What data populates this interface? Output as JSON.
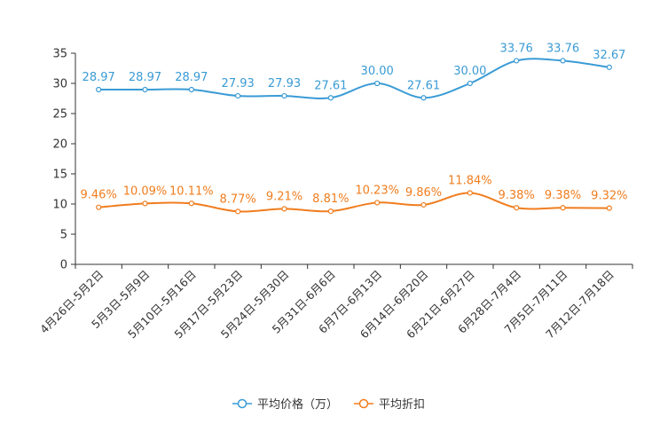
{
  "chart_data": {
    "type": "line",
    "categories": [
      "4月26日-5月2日",
      "5月3日-5月9日",
      "5月10日-5月16日",
      "5月17日-5月23日",
      "5月24日-5月30日",
      "5月31日-6月6日",
      "6月7日-6月13日",
      "6月14日-6月20日",
      "6月21日-6月27日",
      "6月28日-7月4日",
      "7月5日-7月11日",
      "7月12日-7月18日"
    ],
    "ylim": [
      0,
      35
    ],
    "yticks": [
      0,
      5,
      10,
      15,
      20,
      25,
      30,
      35
    ],
    "grid": false,
    "legend_position": "bottom",
    "series": [
      {
        "name": "平均价格（万）",
        "color": "#3a9bd5",
        "values": [
          28.97,
          28.97,
          28.97,
          27.93,
          27.93,
          27.61,
          30.0,
          27.61,
          30.0,
          33.76,
          33.76,
          32.67
        ],
        "labels": [
          "28.97",
          "28.97",
          "28.97",
          "27.93",
          "27.93",
          "27.61",
          "30.00",
          "27.61",
          "30.00",
          "33.76",
          "33.76",
          "32.67"
        ]
      },
      {
        "name": "平均折扣",
        "color": "#f07d1e",
        "values": [
          9.46,
          10.09,
          10.11,
          8.77,
          9.21,
          8.81,
          10.23,
          9.86,
          11.84,
          9.38,
          9.38,
          9.32
        ],
        "labels": [
          "9.46%",
          "10.09%",
          "10.11%",
          "8.77%",
          "9.21%",
          "8.81%",
          "10.23%",
          "9.86%",
          "11.84%",
          "9.38%",
          "9.38%",
          "9.32%"
        ]
      }
    ]
  }
}
